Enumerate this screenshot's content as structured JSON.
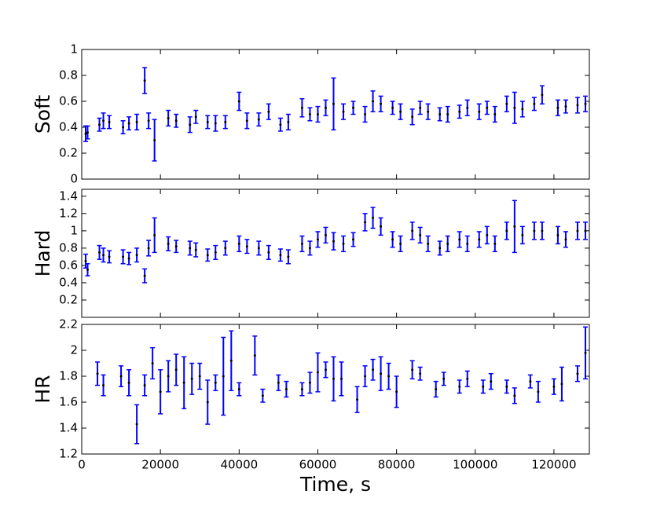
{
  "chart_data": [
    {
      "type": "errorbar",
      "ylabel": "Soft",
      "color": "#0000ff",
      "x": [
        1000,
        1500,
        4500,
        5500,
        7000,
        10500,
        12000,
        14000,
        16000,
        17000,
        18500,
        22000,
        24000,
        27500,
        29000,
        32000,
        34000,
        36500,
        40000,
        42000,
        45000,
        47500,
        50500,
        52500,
        56000,
        58000,
        60000,
        62000,
        64000,
        66500,
        69000,
        72000,
        74000,
        76000,
        79000,
        81000,
        84000,
        86000,
        88000,
        91000,
        93000,
        96000,
        98000,
        101000,
        103000,
        105000,
        108000,
        110000,
        112000,
        115000,
        117000,
        121000,
        123000,
        126000,
        128000
      ],
      "values": [
        0.35,
        0.36,
        0.42,
        0.45,
        0.44,
        0.4,
        0.43,
        0.44,
        0.76,
        0.45,
        0.3,
        0.47,
        0.45,
        0.42,
        0.48,
        0.44,
        0.43,
        0.44,
        0.6,
        0.45,
        0.46,
        0.52,
        0.42,
        0.44,
        0.55,
        0.5,
        0.5,
        0.55,
        0.58,
        0.52,
        0.55,
        0.5,
        0.6,
        0.58,
        0.55,
        0.52,
        0.48,
        0.55,
        0.52,
        0.5,
        0.5,
        0.52,
        0.55,
        0.52,
        0.55,
        0.5,
        0.58,
        0.55,
        0.54,
        0.58,
        0.65,
        0.55,
        0.56,
        0.57,
        0.58
      ],
      "errors": [
        0.06,
        0.05,
        0.05,
        0.06,
        0.05,
        0.05,
        0.05,
        0.06,
        0.1,
        0.06,
        0.16,
        0.06,
        0.05,
        0.06,
        0.05,
        0.05,
        0.06,
        0.05,
        0.07,
        0.06,
        0.05,
        0.06,
        0.05,
        0.06,
        0.07,
        0.05,
        0.06,
        0.06,
        0.2,
        0.06,
        0.05,
        0.06,
        0.08,
        0.06,
        0.05,
        0.06,
        0.06,
        0.05,
        0.06,
        0.05,
        0.06,
        0.05,
        0.06,
        0.06,
        0.05,
        0.06,
        0.06,
        0.12,
        0.06,
        0.05,
        0.07,
        0.06,
        0.05,
        0.06,
        0.06
      ],
      "ylim": [
        0,
        1.0
      ],
      "yticks": [
        0.0,
        0.2,
        0.4,
        0.6,
        0.8,
        1.0
      ]
    },
    {
      "type": "errorbar",
      "ylabel": "Hard",
      "color": "#0000ff",
      "x": [
        1000,
        1500,
        4500,
        5500,
        7000,
        10500,
        12000,
        14000,
        16000,
        17000,
        18500,
        22000,
        24000,
        27500,
        29000,
        32000,
        34000,
        36500,
        40000,
        42000,
        45000,
        47500,
        50500,
        52500,
        56000,
        58000,
        60000,
        62000,
        64000,
        66500,
        69000,
        72000,
        74000,
        76000,
        79000,
        81000,
        84000,
        86000,
        88000,
        91000,
        93000,
        96000,
        98000,
        101000,
        103000,
        105000,
        108000,
        110000,
        112000,
        115000,
        117000,
        121000,
        123000,
        126000,
        128000
      ],
      "values": [
        0.65,
        0.55,
        0.75,
        0.72,
        0.7,
        0.7,
        0.68,
        0.72,
        0.48,
        0.8,
        0.95,
        0.85,
        0.82,
        0.8,
        0.78,
        0.72,
        0.75,
        0.8,
        0.85,
        0.82,
        0.8,
        0.75,
        0.72,
        0.7,
        0.85,
        0.8,
        0.9,
        0.95,
        0.88,
        0.85,
        0.9,
        1.1,
        1.15,
        1.05,
        0.9,
        0.85,
        1.0,
        0.95,
        0.85,
        0.8,
        0.85,
        0.9,
        0.85,
        0.9,
        0.95,
        0.85,
        1.0,
        1.05,
        0.95,
        1.0,
        1.0,
        0.95,
        0.9,
        1.0,
        1.0
      ],
      "errors": [
        0.08,
        0.07,
        0.08,
        0.08,
        0.07,
        0.08,
        0.07,
        0.08,
        0.08,
        0.09,
        0.2,
        0.08,
        0.07,
        0.08,
        0.08,
        0.07,
        0.08,
        0.08,
        0.09,
        0.08,
        0.08,
        0.08,
        0.07,
        0.08,
        0.09,
        0.08,
        0.09,
        0.09,
        0.1,
        0.09,
        0.08,
        0.1,
        0.12,
        0.1,
        0.09,
        0.09,
        0.1,
        0.09,
        0.09,
        0.08,
        0.09,
        0.09,
        0.09,
        0.09,
        0.1,
        0.09,
        0.1,
        0.3,
        0.1,
        0.1,
        0.1,
        0.1,
        0.09,
        0.1,
        0.1
      ],
      "ylim": [
        0,
        1.48
      ],
      "yticks": [
        0.2,
        0.4,
        0.6,
        0.8,
        1.0,
        1.2,
        1.4
      ]
    },
    {
      "type": "errorbar",
      "ylabel": "HR",
      "xlabel": "Time, s",
      "color": "#0000ff",
      "x": [
        4000,
        5500,
        10000,
        12000,
        14000,
        16000,
        18000,
        20000,
        22000,
        24000,
        26000,
        28000,
        30000,
        32000,
        34000,
        36000,
        38000,
        40000,
        44000,
        46000,
        50000,
        52000,
        56000,
        58000,
        60000,
        62000,
        64000,
        66000,
        70000,
        72000,
        74000,
        76000,
        78000,
        80000,
        84000,
        86000,
        90000,
        92000,
        96000,
        98000,
        102000,
        104000,
        108000,
        110000,
        114000,
        116000,
        120000,
        122000,
        126000,
        128000
      ],
      "values": [
        1.82,
        1.73,
        1.8,
        1.75,
        1.43,
        1.73,
        1.9,
        1.68,
        1.8,
        1.85,
        1.75,
        1.78,
        1.8,
        1.6,
        1.75,
        1.8,
        1.92,
        1.7,
        1.96,
        1.65,
        1.75,
        1.7,
        1.7,
        1.75,
        1.83,
        1.85,
        1.78,
        1.78,
        1.62,
        1.8,
        1.85,
        1.82,
        1.8,
        1.68,
        1.85,
        1.82,
        1.7,
        1.78,
        1.72,
        1.78,
        1.72,
        1.76,
        1.72,
        1.65,
        1.76,
        1.68,
        1.72,
        1.74,
        1.82,
        1.98
      ],
      "errors": [
        0.09,
        0.08,
        0.08,
        0.1,
        0.15,
        0.08,
        0.12,
        0.17,
        0.12,
        0.12,
        0.2,
        0.12,
        0.1,
        0.17,
        0.06,
        0.3,
        0.23,
        0.05,
        0.15,
        0.05,
        0.06,
        0.06,
        0.05,
        0.08,
        0.15,
        0.06,
        0.17,
        0.13,
        0.1,
        0.08,
        0.08,
        0.13,
        0.1,
        0.12,
        0.07,
        0.05,
        0.06,
        0.05,
        0.05,
        0.06,
        0.05,
        0.06,
        0.05,
        0.06,
        0.05,
        0.08,
        0.06,
        0.13,
        0.06,
        0.2
      ],
      "ylim": [
        1.2,
        2.2
      ],
      "yticks": [
        1.2,
        1.4,
        1.6,
        1.8,
        2.0,
        2.2
      ],
      "xlim": [
        0,
        129000
      ],
      "xticks": [
        0,
        20000,
        40000,
        60000,
        80000,
        100000,
        120000
      ]
    }
  ]
}
